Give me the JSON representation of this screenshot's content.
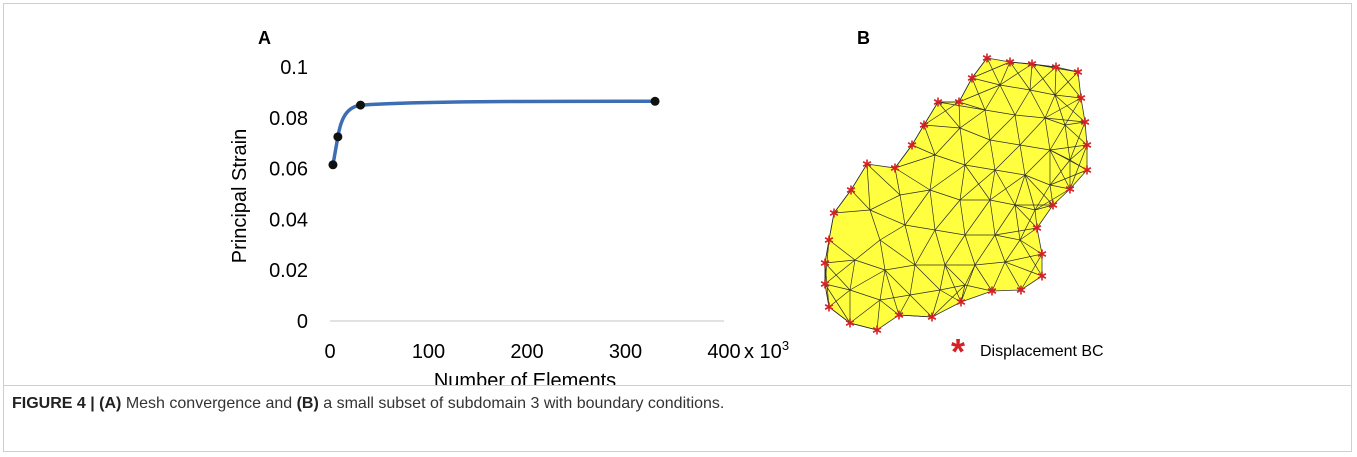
{
  "panel_a": {
    "label": "A",
    "chart_data": {
      "type": "line",
      "xlabel": "Number of Elements",
      "x_unit": "x 10",
      "x_unit_exp": "3",
      "ylabel": "Principal Strain",
      "xlim": [
        0,
        400
      ],
      "ylim": [
        0,
        0.1
      ],
      "x_ticks": [
        "0",
        "100",
        "200",
        "300",
        "400"
      ],
      "y_ticks": [
        "0",
        "0.02",
        "0.04",
        "0.06",
        "0.08",
        "0.1"
      ],
      "series": [
        {
          "x": [
            3,
            8,
            31,
            330
          ],
          "y": [
            0.0615,
            0.0725,
            0.085,
            0.0865
          ]
        }
      ],
      "line_color": "#3d6eb4",
      "marker_color": "#111111",
      "grid": false
    }
  },
  "panel_b": {
    "label": "B",
    "legend_label": "Displacement BC",
    "mesh_fill": "#ffff3f",
    "marker_color": "#d42026"
  },
  "caption": {
    "prefix": "FIGURE 4 | ",
    "part_a": "(A)",
    "text1": " Mesh convergence and ",
    "part_b": "(B)",
    "text2": " a small subset of subdomain 3 with boundary conditions."
  }
}
